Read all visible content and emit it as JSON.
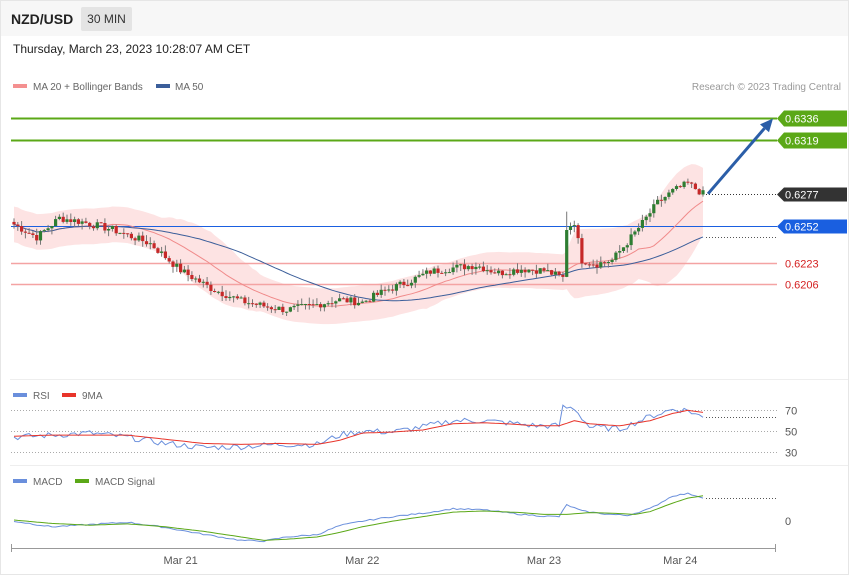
{
  "header": {
    "symbol": "NZD/USD",
    "timeframe": "30 MIN",
    "date": "Thursday, March 23, 2023 10:28:07 AM CET"
  },
  "legend": {
    "bollinger_label": "MA 20 + Bollinger Bands",
    "ma50_label": "MA 50",
    "credit": "Research © 2023 Trading Central"
  },
  "rsi_legend": {
    "rsi_label": "RSI",
    "ma_label": "9MA"
  },
  "macd_legend": {
    "macd_label": "MACD",
    "signal_label": "MACD Signal"
  },
  "colors": {
    "up": "#2e7d32",
    "down": "#c62828",
    "band_fill": "#fde3e3",
    "ma20": "#f08a8a",
    "ma50": "#3b5e9a",
    "resistance": "#5ba817",
    "pivot": "#1a5fe0",
    "support": "#f4a3a3",
    "rsi": "#6a8fdc",
    "rsi_ma": "#e8342a",
    "macd": "#6a8fdc",
    "signal": "#5ba817"
  },
  "chart_data": [
    {
      "type": "candlestick",
      "title": "",
      "x_labels": [
        "Mar 21",
        "Mar 22",
        "Mar 23",
        "Mar 24"
      ],
      "ylim": [
        0.6135,
        0.6345
      ],
      "levels": [
        {
          "value": 0.6336,
          "label": "0.6336",
          "kind": "resistance"
        },
        {
          "value": 0.6319,
          "label": "0.6319",
          "kind": "resistance"
        },
        {
          "value": 0.6277,
          "label": "0.6277",
          "kind": "last"
        },
        {
          "value": 0.6252,
          "label": "0.6252",
          "kind": "pivot"
        },
        {
          "value": 0.6223,
          "label": "0.6223",
          "kind": "support"
        },
        {
          "value": 0.6206,
          "label": "0.6206",
          "kind": "support"
        }
      ],
      "arrow": {
        "from_value": 0.6277,
        "to_value": 0.6336
      },
      "key_points": [
        [
          0,
          0.6253
        ],
        [
          6,
          0.6243
        ],
        [
          12,
          0.6258
        ],
        [
          18,
          0.6255
        ],
        [
          26,
          0.6249
        ],
        [
          36,
          0.6238
        ],
        [
          44,
          0.6217
        ],
        [
          52,
          0.6203
        ],
        [
          60,
          0.6193
        ],
        [
          66,
          0.6189
        ],
        [
          72,
          0.6186
        ],
        [
          78,
          0.6189
        ],
        [
          86,
          0.6194
        ],
        [
          92,
          0.6192
        ],
        [
          98,
          0.6201
        ],
        [
          104,
          0.6208
        ],
        [
          110,
          0.6216
        ],
        [
          116,
          0.6219
        ],
        [
          122,
          0.6221
        ],
        [
          128,
          0.6215
        ],
        [
          134,
          0.6218
        ],
        [
          140,
          0.6217
        ],
        [
          145,
          0.6211
        ],
        [
          146,
          0.625
        ],
        [
          148,
          0.6255
        ],
        [
          150,
          0.6225
        ],
        [
          154,
          0.6222
        ],
        [
          158,
          0.6225
        ],
        [
          162,
          0.6239
        ],
        [
          166,
          0.6254
        ],
        [
          170,
          0.627
        ],
        [
          174,
          0.6279
        ],
        [
          178,
          0.6285
        ],
        [
          182,
          0.6277
        ]
      ]
    },
    {
      "type": "line",
      "title": "",
      "series": [
        {
          "name": "RSI"
        },
        {
          "name": "9MA"
        }
      ],
      "yticks": [
        70,
        50,
        30
      ],
      "ylim": [
        20,
        80
      ],
      "key_points_rsi": [
        [
          0,
          44
        ],
        [
          10,
          46
        ],
        [
          20,
          48
        ],
        [
          30,
          44
        ],
        [
          40,
          38
        ],
        [
          50,
          34
        ],
        [
          60,
          35
        ],
        [
          70,
          37
        ],
        [
          80,
          37
        ],
        [
          86,
          46
        ],
        [
          92,
          50
        ],
        [
          100,
          49
        ],
        [
          108,
          54
        ],
        [
          116,
          60
        ],
        [
          124,
          60
        ],
        [
          130,
          58
        ],
        [
          138,
          55
        ],
        [
          144,
          55
        ],
        [
          145,
          73
        ],
        [
          148,
          72
        ],
        [
          152,
          54
        ],
        [
          160,
          52
        ],
        [
          168,
          64
        ],
        [
          174,
          71
        ],
        [
          178,
          70
        ],
        [
          182,
          63
        ]
      ],
      "key_points_ma": [
        [
          0,
          45
        ],
        [
          10,
          46
        ],
        [
          20,
          46
        ],
        [
          30,
          46
        ],
        [
          40,
          42
        ],
        [
          50,
          38
        ],
        [
          60,
          37
        ],
        [
          70,
          38
        ],
        [
          80,
          37
        ],
        [
          86,
          41
        ],
        [
          92,
          48
        ],
        [
          100,
          49
        ],
        [
          108,
          51
        ],
        [
          116,
          57
        ],
        [
          124,
          58
        ],
        [
          130,
          57
        ],
        [
          138,
          55
        ],
        [
          144,
          55
        ],
        [
          148,
          60
        ],
        [
          152,
          57
        ],
        [
          160,
          55
        ],
        [
          168,
          60
        ],
        [
          174,
          67
        ],
        [
          178,
          70
        ],
        [
          182,
          68
        ]
      ]
    },
    {
      "type": "line",
      "title": "",
      "series": [
        {
          "name": "MACD"
        },
        {
          "name": "MACD Signal"
        }
      ],
      "yticks": [
        0
      ],
      "ylim": [
        -1.1,
        1.6
      ],
      "key_points_macd": [
        [
          0,
          0.0
        ],
        [
          10,
          -0.25
        ],
        [
          20,
          -0.15
        ],
        [
          30,
          -0.05
        ],
        [
          40,
          -0.28
        ],
        [
          50,
          -0.58
        ],
        [
          60,
          -0.85
        ],
        [
          66,
          -0.88
        ],
        [
          72,
          -0.7
        ],
        [
          80,
          -0.6
        ],
        [
          86,
          -0.2
        ],
        [
          92,
          0.0
        ],
        [
          100,
          0.2
        ],
        [
          108,
          0.35
        ],
        [
          116,
          0.55
        ],
        [
          124,
          0.5
        ],
        [
          134,
          0.3
        ],
        [
          140,
          0.22
        ],
        [
          144,
          0.2
        ],
        [
          146,
          0.72
        ],
        [
          150,
          0.45
        ],
        [
          156,
          0.32
        ],
        [
          162,
          0.25
        ],
        [
          168,
          0.55
        ],
        [
          174,
          1.12
        ],
        [
          178,
          1.22
        ],
        [
          182,
          1.05
        ]
      ],
      "key_points_signal": [
        [
          0,
          0.05
        ],
        [
          10,
          -0.1
        ],
        [
          20,
          -0.18
        ],
        [
          30,
          -0.12
        ],
        [
          40,
          -0.25
        ],
        [
          50,
          -0.45
        ],
        [
          60,
          -0.7
        ],
        [
          66,
          -0.85
        ],
        [
          72,
          -0.8
        ],
        [
          80,
          -0.7
        ],
        [
          86,
          -0.5
        ],
        [
          92,
          -0.25
        ],
        [
          100,
          0.0
        ],
        [
          108,
          0.2
        ],
        [
          116,
          0.4
        ],
        [
          124,
          0.45
        ],
        [
          134,
          0.38
        ],
        [
          140,
          0.3
        ],
        [
          146,
          0.3
        ],
        [
          152,
          0.38
        ],
        [
          158,
          0.35
        ],
        [
          164,
          0.3
        ],
        [
          168,
          0.42
        ],
        [
          174,
          0.8
        ],
        [
          178,
          1.02
        ],
        [
          182,
          1.12
        ]
      ]
    }
  ]
}
